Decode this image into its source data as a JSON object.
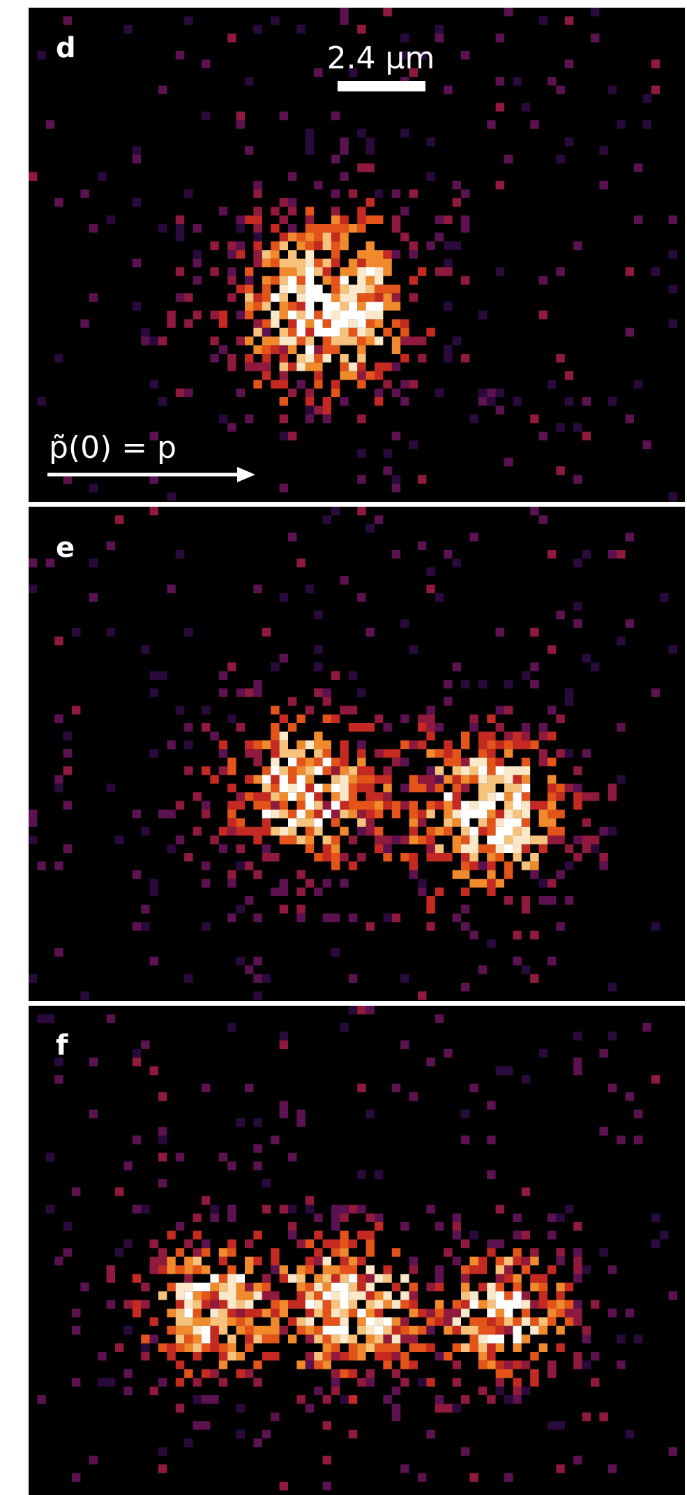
{
  "panels": [
    {
      "label": "d",
      "scale_bar": "2.4 µm",
      "annotation": "p̃(0) = p"
    },
    {
      "label": "e"
    },
    {
      "label": "f"
    }
  ]
}
